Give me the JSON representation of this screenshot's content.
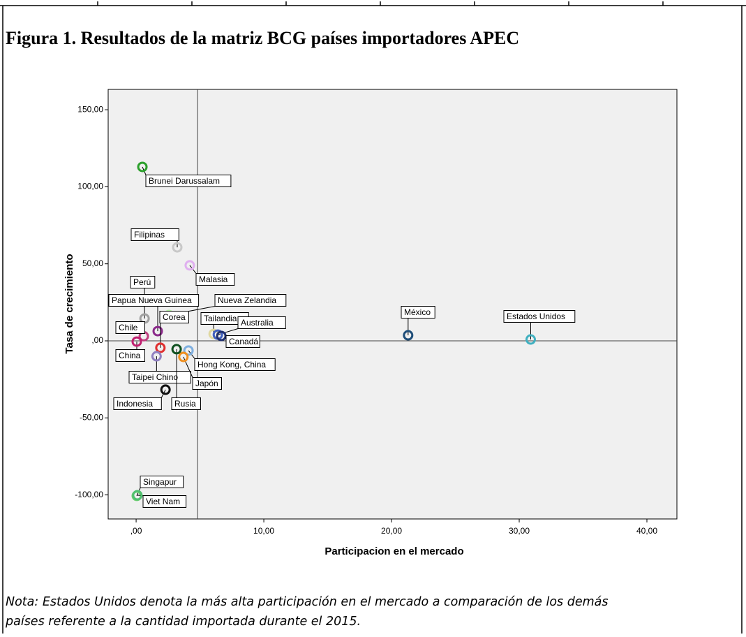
{
  "title": "Figura 1. Resultados de la matriz BCG países importadores APEC",
  "chart_data": {
    "type": "scatter",
    "x_label": "Participacion en el mercado",
    "y_label": "Tasa de crecimiento",
    "xlim": [
      -2.19,
      42.35
    ],
    "ylim": [
      -115.6,
      163.2
    ],
    "xticks": [
      {
        "value": 0,
        "label": ",00"
      },
      {
        "value": 10,
        "label": "10,00"
      },
      {
        "value": 20,
        "label": "20,00"
      },
      {
        "value": 30,
        "label": "30,00"
      },
      {
        "value": 40,
        "label": "40,00"
      }
    ],
    "yticks": [
      {
        "value": 150,
        "label": "150,00"
      },
      {
        "value": 100,
        "label": "100,00"
      },
      {
        "value": 50,
        "label": "50,00"
      },
      {
        "value": 0,
        "label": ",00"
      },
      {
        "value": -50,
        "label": "-50,00"
      },
      {
        "value": -100,
        "label": "-100,00"
      }
    ],
    "reference_x": 4.81,
    "reference_y": 0,
    "points": [
      {
        "label": "Brunei Darussalam",
        "x": 0.49,
        "y": 112.9,
        "color": "#2ca02c"
      },
      {
        "label": "Filipinas",
        "x": 3.22,
        "y": 60.7,
        "color": "#c8c8c8"
      },
      {
        "label": "Malasia",
        "x": 4.2,
        "y": 49,
        "color": "#e0b0f0"
      },
      {
        "label": "Perú",
        "x": 0.66,
        "y": 14.5,
        "color": "#a0a0a0"
      },
      {
        "label": "Papua Nueva Guinea",
        "x": 1.69,
        "y": 6.3,
        "color": "#8b2a8b"
      },
      {
        "label": "Nueva Zelandia",
        "x": 2.57,
        "y": 16.8,
        "color": "#b0f0a0"
      },
      {
        "label": "Tailandia",
        "x": 6.07,
        "y": 4.5,
        "color": "#e0d8a0"
      },
      {
        "label": "Australia",
        "x": 6.4,
        "y": 4.0,
        "color": "#4060c0"
      },
      {
        "label": "Canadá",
        "x": 6.67,
        "y": 3.2,
        "color": "#203070"
      },
      {
        "label": "México",
        "x": 21.3,
        "y": 3.6,
        "color": "#1f4e79"
      },
      {
        "label": "Estados Unidos",
        "x": 30.9,
        "y": 0.9,
        "color": "#40b0c0"
      },
      {
        "label": "Chile",
        "x": 0.6,
        "y": 3,
        "color": "#c04080"
      },
      {
        "label": "Corea",
        "x": 1.9,
        "y": -4.5,
        "color": "#e03030"
      },
      {
        "label": "China",
        "x": 0.05,
        "y": -0.5,
        "color": "#c02070"
      },
      {
        "label": "Taipei Chino",
        "x": 1.6,
        "y": -10,
        "color": "#9080c0"
      },
      {
        "label": "Hong Kong, China",
        "x": 4.1,
        "y": -6.3,
        "color": "#80b0e0"
      },
      {
        "label": "Japón",
        "x": 3.7,
        "y": -10.4,
        "color": "#f09020"
      },
      {
        "label": "Indonesia",
        "x": 2.3,
        "y": -31.7,
        "color": "#101010"
      },
      {
        "label": "Rusia",
        "x": 3.17,
        "y": -5.4,
        "color": "#105020"
      },
      {
        "label": "Singapur",
        "x": 0.05,
        "y": -100.6,
        "color": "#70d070"
      },
      {
        "label": "Viet Nam",
        "x": 0.1,
        "y": -100.2,
        "color": "#50c070"
      }
    ]
  },
  "note_lines": [
    "Nota: Estados Unidos denota la más alta participación en el mercado a comparación de los demás",
    "países referente a la cantidad importada durante el 2015."
  ]
}
